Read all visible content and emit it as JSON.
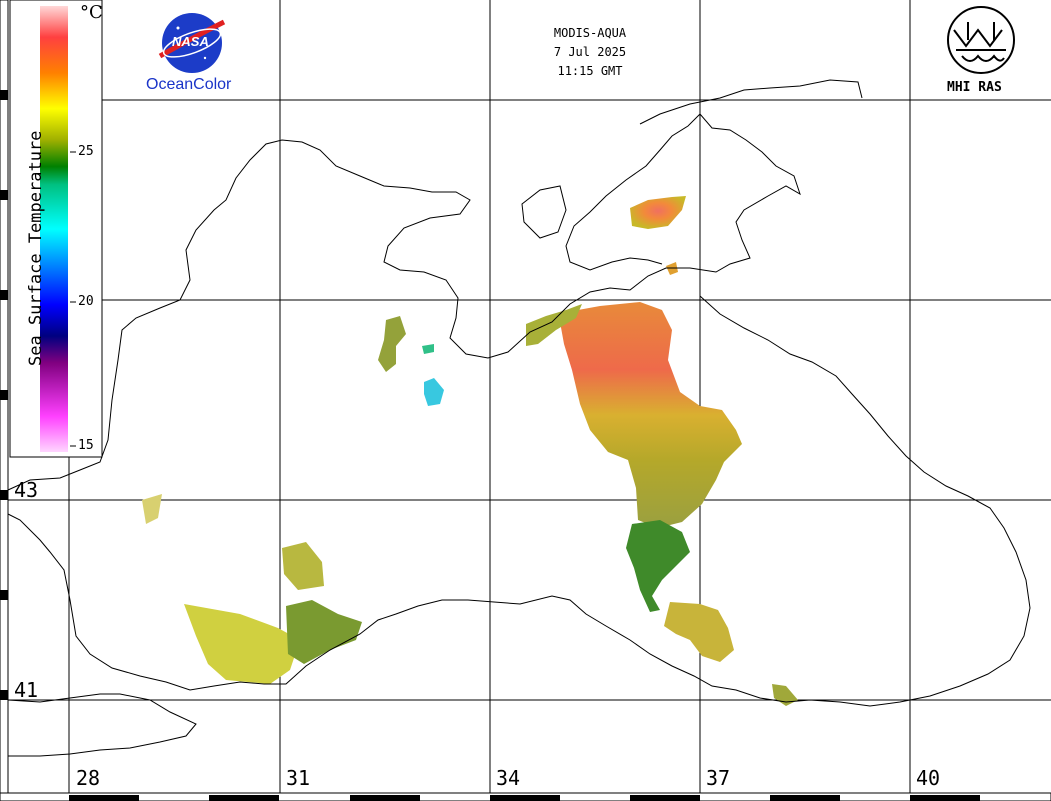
{
  "header": {
    "sensor": "MODIS-AQUA",
    "date": "7 Jul 2025",
    "time": "11:15 GMT"
  },
  "logos": {
    "left_caption": "OceanColor",
    "left_badge": "NASA",
    "right_caption": "MHI RAS"
  },
  "colorbar": {
    "title": "Sea Surface Temperature",
    "unit": "°C",
    "ticks": [
      "15",
      "20",
      "25"
    ],
    "colors": [
      "#ffd6ff",
      "#ff40ff",
      "#800080",
      "#000080",
      "#0000ff",
      "#00ffff",
      "#00c000",
      "#c0c000",
      "#ffff00",
      "#ff8000",
      "#ff4040",
      "#ffd6d6"
    ]
  },
  "axes": {
    "longitudes": [
      "28",
      "31",
      "34",
      "37",
      "40"
    ],
    "latitudes": [
      "43",
      "41"
    ]
  },
  "legend_icons": {
    "nasa": "nasa-meatball-icon",
    "mhi": "mhi-ras-emblem-icon"
  }
}
